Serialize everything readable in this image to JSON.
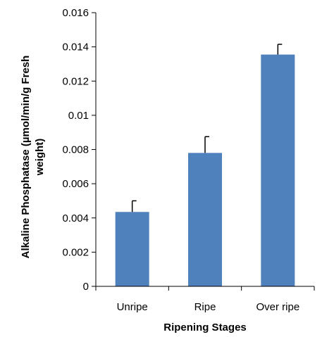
{
  "chart_data": {
    "type": "bar",
    "title": "",
    "categories": [
      "Unripe",
      "Ripe",
      "Over ripe"
    ],
    "values": [
      0.00435,
      0.0078,
      0.01355
    ],
    "error_plus": [
      0.00065,
      0.00095,
      0.0006
    ],
    "xlabel": "Ripening Stages",
    "ylabel_lines": [
      "Alkaline Phosphatase (µmol/min/g Fresh",
      "weight)"
    ],
    "ylim": [
      0,
      0.016
    ],
    "yticks": [
      0,
      0.002,
      0.004,
      0.006,
      0.008,
      0.01,
      0.012,
      0.014,
      0.016
    ],
    "ytick_labels": [
      "0",
      "0.002",
      "0.004",
      "0.006",
      "0.008",
      "0.01",
      "0.012",
      "0.014",
      "0.016"
    ],
    "grid": false,
    "legend": "none",
    "bar_color": "#4f81bd",
    "axis_color": "#000000"
  }
}
